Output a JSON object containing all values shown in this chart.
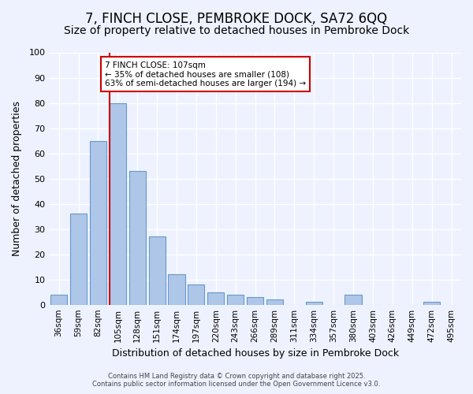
{
  "title": "7, FINCH CLOSE, PEMBROKE DOCK, SA72 6QQ",
  "subtitle": "Size of property relative to detached houses in Pembroke Dock",
  "xlabel": "Distribution of detached houses by size in Pembroke Dock",
  "ylabel": "Number of detached properties",
  "bar_labels": [
    "36sqm",
    "59sqm",
    "82sqm",
    "105sqm",
    "128sqm",
    "151sqm",
    "174sqm",
    "197sqm",
    "220sqm",
    "243sqm",
    "266sqm",
    "289sqm",
    "311sqm",
    "334sqm",
    "357sqm",
    "380sqm",
    "403sqm",
    "426sqm",
    "449sqm",
    "472sqm",
    "495sqm"
  ],
  "bar_values": [
    4,
    36,
    65,
    80,
    53,
    27,
    12,
    8,
    5,
    4,
    3,
    2,
    0,
    1,
    0,
    4,
    0,
    0,
    0,
    1,
    0
  ],
  "bar_color": "#aec6e8",
  "bar_edge_color": "#6699cc",
  "vline_x_index": 3,
  "vline_color": "#cc0000",
  "ylim": [
    0,
    100
  ],
  "yticks": [
    0,
    10,
    20,
    30,
    40,
    50,
    60,
    70,
    80,
    90,
    100
  ],
  "annotation_title": "7 FINCH CLOSE: 107sqm",
  "annotation_line1": "← 35% of detached houses are smaller (108)",
  "annotation_line2": "63% of semi-detached houses are larger (194) →",
  "annotation_box_color": "#ffffff",
  "annotation_box_edge": "#cc0000",
  "footer1": "Contains HM Land Registry data © Crown copyright and database right 2025.",
  "footer2": "Contains public sector information licensed under the Open Government Licence v3.0.",
  "bg_color": "#eef2ff",
  "grid_color": "#ffffff",
  "title_fontsize": 12,
  "subtitle_fontsize": 10
}
